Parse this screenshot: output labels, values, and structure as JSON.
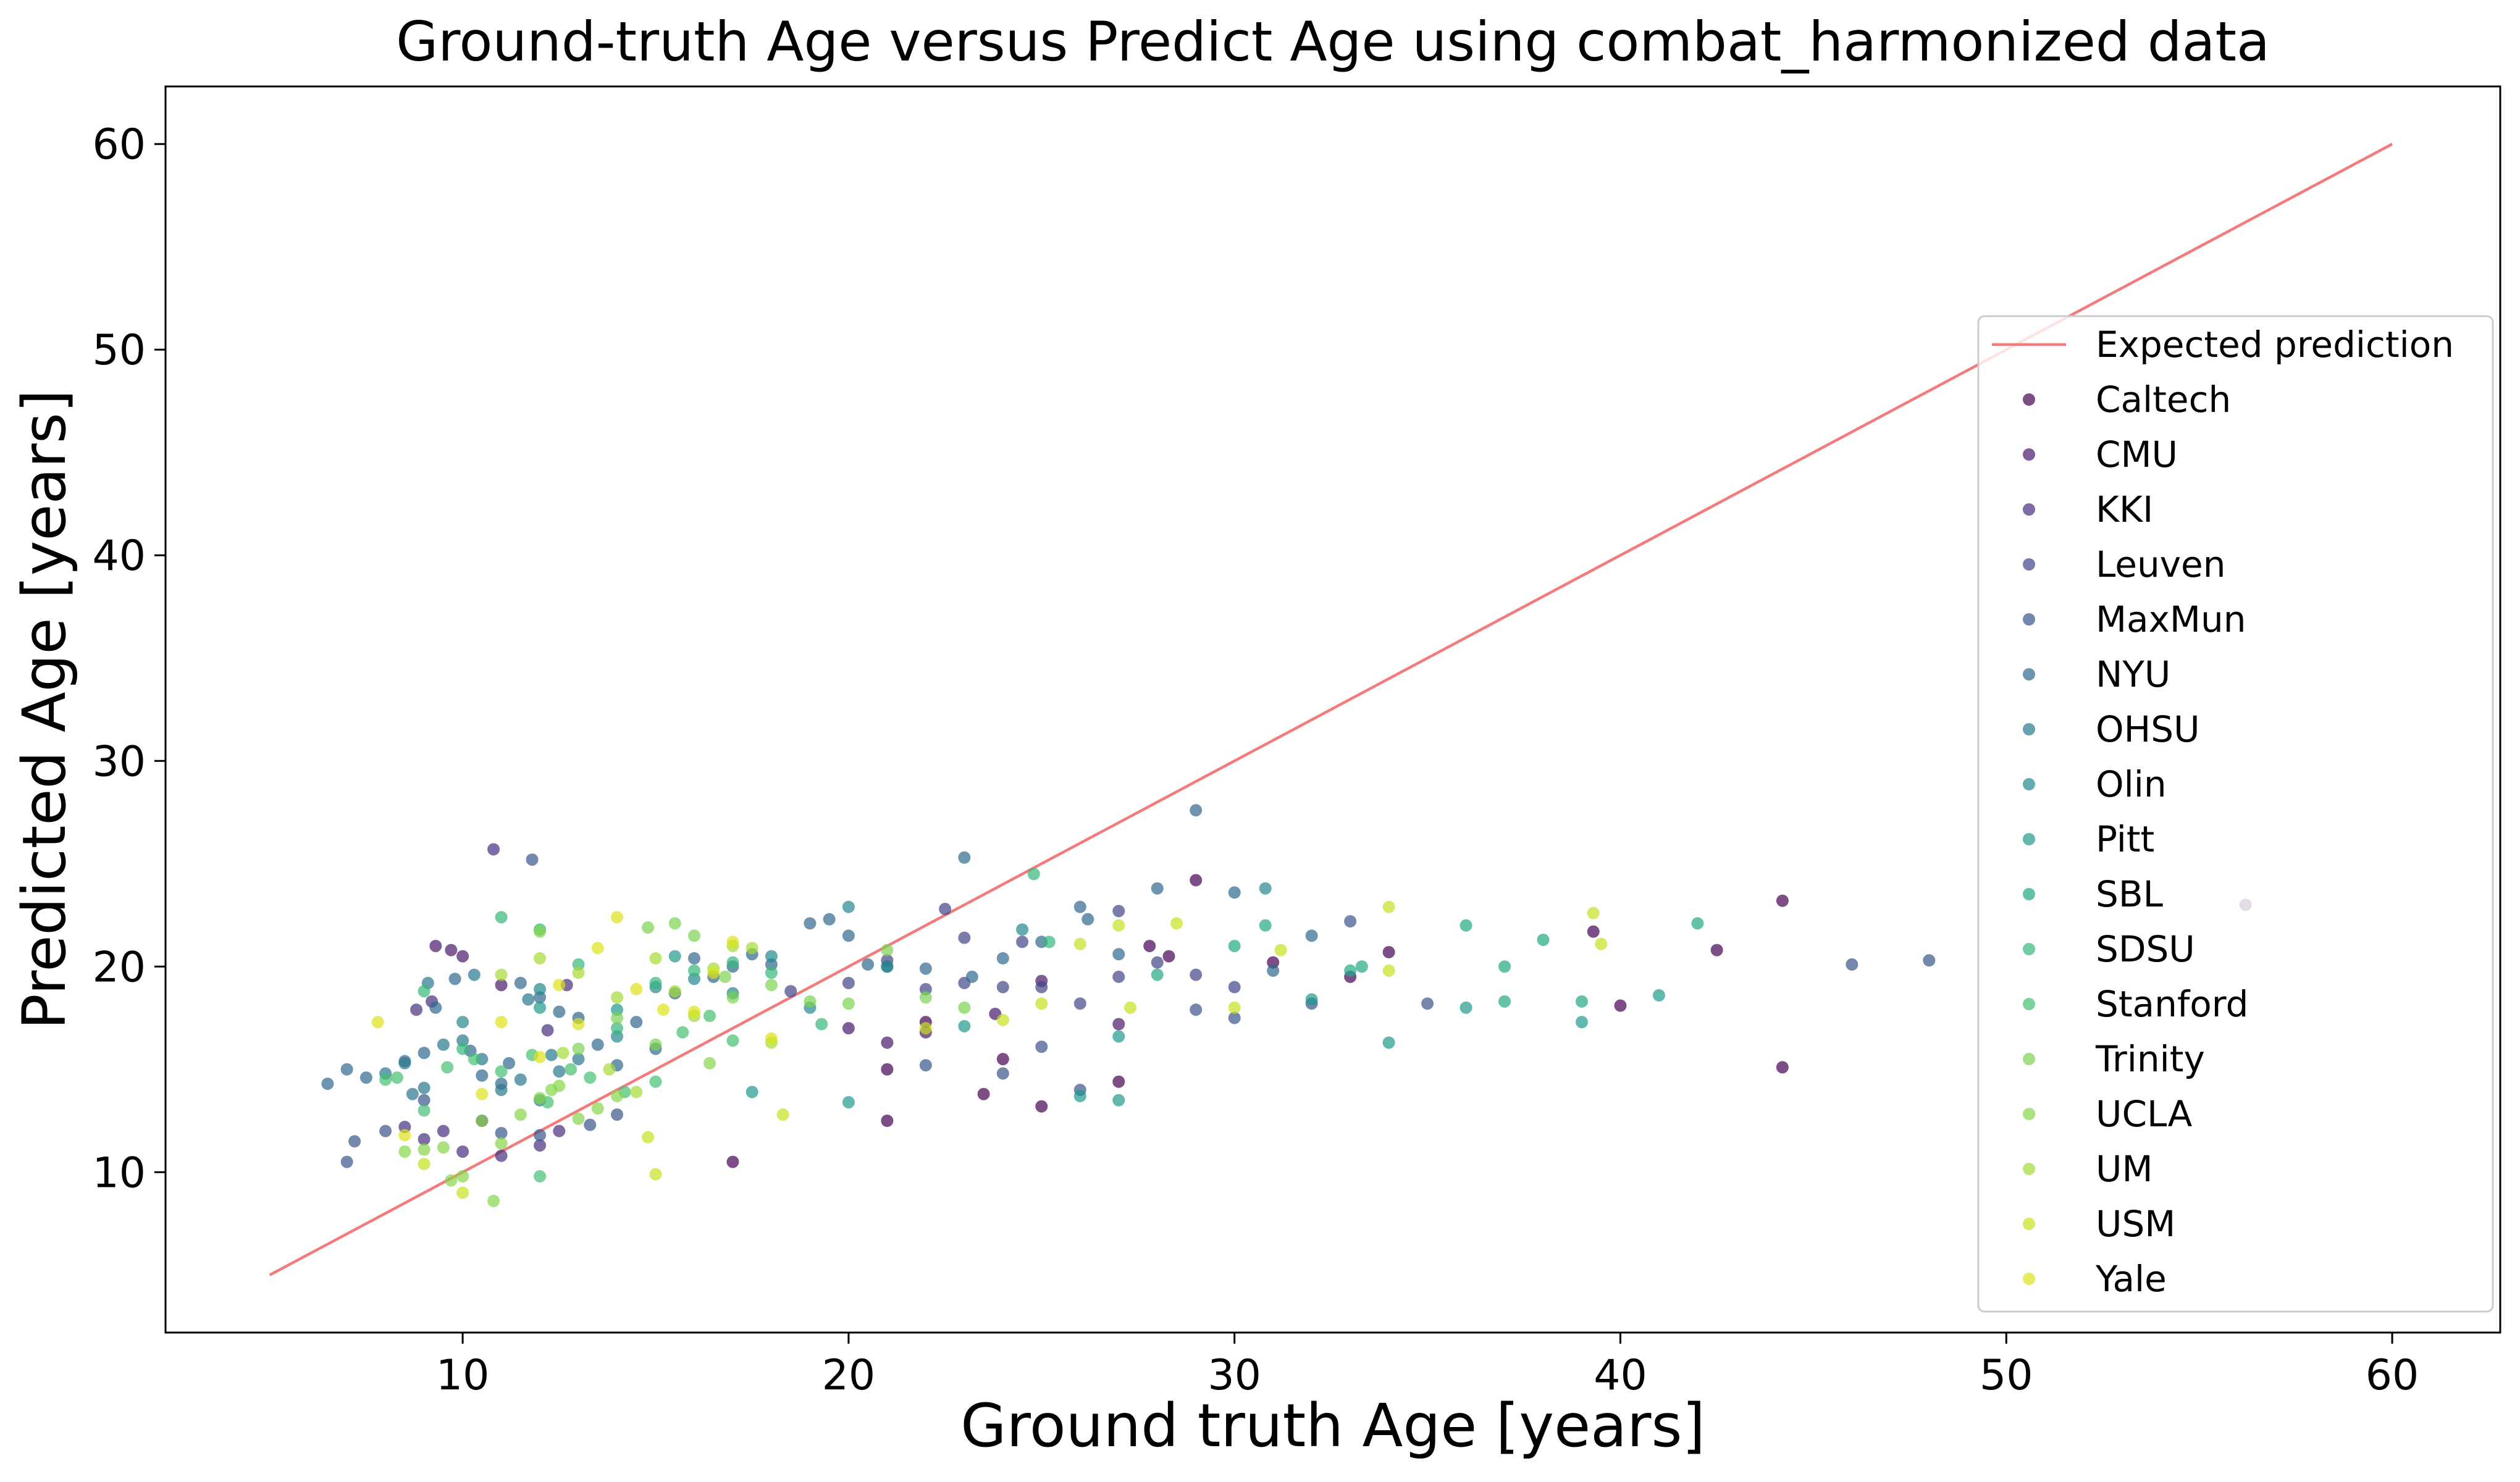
{
  "chart_data": {
    "type": "scatter",
    "title": "Ground-truth Age versus Predict Age using combat_harmonized data",
    "xlabel": "Ground truth Age [years]",
    "ylabel": "Predicted Age [years]",
    "xlim": [
      2.3,
      62.8
    ],
    "ylim": [
      2.2,
      62.8
    ],
    "xticks": [
      10,
      20,
      30,
      40,
      50,
      60
    ],
    "yticks": [
      10,
      20,
      30,
      40,
      50,
      60
    ],
    "xtick_labels": [
      "10",
      "20",
      "30",
      "40",
      "50",
      "60"
    ],
    "ytick_labels": [
      "10",
      "20",
      "30",
      "40",
      "50",
      "60"
    ],
    "grid": false,
    "legend_position": "center-right",
    "reference_line": {
      "name": "Expected prediction",
      "color": "#f47b7b",
      "points": [
        [
          5,
          5
        ],
        [
          60,
          60
        ]
      ]
    },
    "series": [
      {
        "name": "Caltech",
        "color": "#440154",
        "points": [
          [
            17.0,
            10.5
          ],
          [
            21.0,
            12.5
          ],
          [
            23.5,
            13.8
          ],
          [
            25.0,
            13.2
          ],
          [
            27.0,
            14.4
          ],
          [
            24.0,
            15.5
          ],
          [
            21.0,
            15.0
          ],
          [
            22.0,
            17.3
          ],
          [
            27.8,
            21.0
          ],
          [
            28.3,
            20.5
          ],
          [
            31.0,
            20.2
          ],
          [
            33.0,
            19.5
          ],
          [
            34.0,
            20.7
          ],
          [
            39.3,
            21.7
          ],
          [
            40.0,
            18.1
          ],
          [
            42.5,
            20.8
          ],
          [
            44.2,
            23.2
          ],
          [
            44.2,
            15.1
          ],
          [
            56.2,
            23.0
          ],
          [
            29.0,
            24.2
          ]
        ]
      },
      {
        "name": "CMU",
        "color": "#481a6c",
        "points": [
          [
            20.0,
            17.0
          ],
          [
            21.0,
            16.3
          ],
          [
            22.0,
            16.8
          ],
          [
            23.8,
            17.7
          ],
          [
            25.0,
            19.3
          ],
          [
            27.0,
            17.2
          ],
          [
            9.3,
            21.0
          ],
          [
            9.7,
            20.8
          ],
          [
            10.0,
            20.5
          ],
          [
            11.0,
            19.1
          ]
        ]
      },
      {
        "name": "KKI",
        "color": "#472f7d",
        "points": [
          [
            8.5,
            12.2
          ],
          [
            9.0,
            11.6
          ],
          [
            9.5,
            12.0
          ],
          [
            10.0,
            11.0
          ],
          [
            10.5,
            12.5
          ],
          [
            11.0,
            10.8
          ],
          [
            12.0,
            11.3
          ],
          [
            12.5,
            12.0
          ],
          [
            8.8,
            17.9
          ],
          [
            9.2,
            18.3
          ],
          [
            10.8,
            25.7
          ],
          [
            12.2,
            16.9
          ],
          [
            12.7,
            19.1
          ]
        ]
      },
      {
        "name": "Leuven",
        "color": "#414487",
        "points": [
          [
            18.5,
            18.8
          ],
          [
            20.0,
            19.2
          ],
          [
            21.0,
            20.3
          ],
          [
            22.0,
            18.9
          ],
          [
            23.0,
            19.2
          ],
          [
            24.0,
            19.0
          ],
          [
            25.0,
            19.0
          ],
          [
            26.0,
            18.2
          ],
          [
            27.0,
            19.5
          ],
          [
            28.0,
            20.2
          ],
          [
            29.0,
            19.6
          ],
          [
            30.0,
            19.0
          ],
          [
            22.5,
            22.8
          ],
          [
            23.0,
            21.4
          ],
          [
            24.5,
            21.2
          ],
          [
            27.0,
            22.7
          ]
        ]
      },
      {
        "name": "MaxMun",
        "color": "#39568c",
        "points": [
          [
            7.0,
            10.5
          ],
          [
            7.2,
            11.5
          ],
          [
            8.0,
            12.0
          ],
          [
            9.0,
            13.5
          ],
          [
            11.0,
            11.9
          ],
          [
            12.0,
            11.8
          ],
          [
            14.0,
            12.8
          ],
          [
            22.0,
            15.2
          ],
          [
            24.0,
            14.8
          ],
          [
            25.0,
            16.1
          ],
          [
            26.0,
            14.0
          ],
          [
            30.0,
            17.5
          ],
          [
            32.0,
            18.2
          ],
          [
            35.0,
            18.2
          ],
          [
            46.0,
            20.1
          ],
          [
            48.0,
            20.3
          ],
          [
            33.0,
            22.2
          ],
          [
            29.0,
            17.9
          ],
          [
            11.8,
            25.2
          ],
          [
            13.3,
            12.3
          ]
        ]
      },
      {
        "name": "NYU",
        "color": "#31688e",
        "points": [
          [
            6.5,
            14.3
          ],
          [
            7.0,
            15.0
          ],
          [
            7.5,
            14.6
          ],
          [
            8.5,
            15.4
          ],
          [
            9.0,
            15.8
          ],
          [
            9.3,
            18.0
          ],
          [
            9.8,
            19.4
          ],
          [
            10.2,
            15.9
          ],
          [
            10.5,
            14.7
          ],
          [
            11.0,
            14.3
          ],
          [
            11.2,
            15.3
          ],
          [
            11.5,
            19.2
          ],
          [
            12.0,
            18.5
          ],
          [
            12.5,
            17.8
          ],
          [
            13.0,
            17.5
          ],
          [
            13.5,
            16.2
          ],
          [
            14.0,
            15.2
          ],
          [
            14.5,
            17.3
          ],
          [
            15.0,
            16.0
          ],
          [
            15.5,
            18.7
          ],
          [
            16.0,
            20.4
          ],
          [
            16.5,
            19.5
          ],
          [
            17.0,
            20.0
          ],
          [
            17.5,
            20.6
          ],
          [
            18.0,
            20.1
          ],
          [
            19.0,
            22.1
          ],
          [
            19.5,
            22.3
          ],
          [
            20.0,
            21.5
          ],
          [
            20.5,
            20.1
          ],
          [
            21.0,
            20.0
          ],
          [
            22.0,
            19.9
          ],
          [
            23.0,
            25.3
          ],
          [
            24.0,
            20.4
          ],
          [
            25.0,
            21.2
          ],
          [
            26.0,
            22.9
          ],
          [
            27.0,
            20.6
          ],
          [
            28.0,
            23.8
          ],
          [
            29.0,
            27.6
          ],
          [
            30.0,
            23.6
          ],
          [
            31.0,
            19.8
          ],
          [
            32.0,
            21.5
          ],
          [
            26.2,
            22.3
          ],
          [
            23.2,
            19.5
          ]
        ]
      },
      {
        "name": "OHSU",
        "color": "#2a788e",
        "points": [
          [
            8.0,
            14.8
          ],
          [
            8.5,
            15.3
          ],
          [
            9.0,
            14.1
          ],
          [
            9.5,
            16.2
          ],
          [
            10.0,
            16.4
          ],
          [
            10.5,
            15.5
          ],
          [
            11.0,
            14.0
          ],
          [
            11.5,
            14.5
          ],
          [
            12.0,
            13.5
          ],
          [
            12.5,
            14.9
          ],
          [
            13.0,
            15.5
          ],
          [
            9.1,
            19.2
          ],
          [
            10.3,
            19.6
          ],
          [
            11.7,
            18.4
          ],
          [
            12.3,
            15.7
          ],
          [
            8.7,
            13.8
          ]
        ]
      },
      {
        "name": "Olin",
        "color": "#23888e",
        "points": [
          [
            10.0,
            17.3
          ],
          [
            12.0,
            18.9
          ],
          [
            14.0,
            16.6
          ],
          [
            15.0,
            19.0
          ],
          [
            16.0,
            19.4
          ],
          [
            17.0,
            18.7
          ],
          [
            18.0,
            20.5
          ],
          [
            19.0,
            18.0
          ],
          [
            20.0,
            22.9
          ],
          [
            21.0,
            20.0
          ],
          [
            30.8,
            23.8
          ],
          [
            24.5,
            21.8
          ]
        ]
      },
      {
        "name": "Pitt",
        "color": "#1f988b",
        "points": [
          [
            12.0,
            18.0
          ],
          [
            14.0,
            17.9
          ],
          [
            15.5,
            20.5
          ],
          [
            17.5,
            13.9
          ],
          [
            20.0,
            13.4
          ],
          [
            23.0,
            17.1
          ],
          [
            26.0,
            13.7
          ],
          [
            27.0,
            13.5
          ],
          [
            27.0,
            16.6
          ],
          [
            32.0,
            18.4
          ],
          [
            34.0,
            16.3
          ],
          [
            36.0,
            18.0
          ],
          [
            39.0,
            17.3
          ],
          [
            41.0,
            18.6
          ]
        ]
      },
      {
        "name": "SBL",
        "color": "#22a884",
        "points": [
          [
            28.0,
            19.6
          ],
          [
            30.0,
            21.0
          ],
          [
            33.0,
            19.8
          ],
          [
            36.0,
            22.0
          ],
          [
            37.0,
            20.0
          ],
          [
            38.0,
            21.3
          ],
          [
            39.0,
            18.3
          ],
          [
            42.0,
            22.1
          ],
          [
            37.0,
            18.3
          ],
          [
            33.3,
            20.0
          ],
          [
            30.8,
            22.0
          ]
        ]
      },
      {
        "name": "SDSU",
        "color": "#35b779",
        "points": [
          [
            9.0,
            18.8
          ],
          [
            10.0,
            16.0
          ],
          [
            11.0,
            22.4
          ],
          [
            12.0,
            21.8
          ],
          [
            13.0,
            20.1
          ],
          [
            14.0,
            17.0
          ],
          [
            15.0,
            19.2
          ],
          [
            16.0,
            19.8
          ],
          [
            17.0,
            20.2
          ],
          [
            18.0,
            19.7
          ],
          [
            24.8,
            24.5
          ],
          [
            25.2,
            21.2
          ],
          [
            19.3,
            17.2
          ]
        ]
      },
      {
        "name": "Stanford",
        "color": "#44bf70",
        "points": [
          [
            8.0,
            14.5
          ],
          [
            9.0,
            13.0
          ],
          [
            9.6,
            15.1
          ],
          [
            10.3,
            15.5
          ],
          [
            11.0,
            14.9
          ],
          [
            11.8,
            15.7
          ],
          [
            12.2,
            13.4
          ],
          [
            12.8,
            15.0
          ],
          [
            13.3,
            14.6
          ],
          [
            14.2,
            13.9
          ],
          [
            15.0,
            14.4
          ],
          [
            15.7,
            16.8
          ],
          [
            16.4,
            17.6
          ],
          [
            17.0,
            16.4
          ],
          [
            8.3,
            14.6
          ],
          [
            12.0,
            9.8
          ]
        ]
      },
      {
        "name": "Trinity",
        "color": "#7ad151",
        "points": [
          [
            13.0,
            16.0
          ],
          [
            14.0,
            17.5
          ],
          [
            15.0,
            16.2
          ],
          [
            15.5,
            22.1
          ],
          [
            16.0,
            21.5
          ],
          [
            17.0,
            18.5
          ],
          [
            18.0,
            19.1
          ],
          [
            19.0,
            18.3
          ],
          [
            20.0,
            18.2
          ],
          [
            21.0,
            20.8
          ],
          [
            22.0,
            18.5
          ],
          [
            23.0,
            18.0
          ],
          [
            16.8,
            19.5
          ],
          [
            14.8,
            21.9
          ]
        ]
      },
      {
        "name": "UCLA",
        "color": "#86d549",
        "points": [
          [
            8.5,
            11.0
          ],
          [
            9.0,
            11.1
          ],
          [
            9.5,
            11.2
          ],
          [
            10.0,
            9.8
          ],
          [
            10.5,
            12.5
          ],
          [
            11.0,
            11.4
          ],
          [
            11.5,
            12.8
          ],
          [
            12.0,
            13.6
          ],
          [
            12.5,
            14.2
          ],
          [
            13.0,
            12.6
          ],
          [
            13.5,
            13.1
          ],
          [
            14.0,
            13.7
          ],
          [
            9.7,
            9.6
          ],
          [
            10.8,
            8.6
          ],
          [
            12.3,
            14.0
          ],
          [
            12.0,
            21.7
          ],
          [
            16.4,
            15.3
          ]
        ]
      },
      {
        "name": "UM",
        "color": "#a5db36",
        "points": [
          [
            11.0,
            19.6
          ],
          [
            12.0,
            20.4
          ],
          [
            13.0,
            19.7
          ],
          [
            14.0,
            18.5
          ],
          [
            14.5,
            13.9
          ],
          [
            15.0,
            20.4
          ],
          [
            15.5,
            18.8
          ],
          [
            16.0,
            17.6
          ],
          [
            16.5,
            19.9
          ],
          [
            17.0,
            21.0
          ],
          [
            17.5,
            20.9
          ],
          [
            18.0,
            16.3
          ],
          [
            13.8,
            15.0
          ],
          [
            12.6,
            15.8
          ]
        ]
      },
      {
        "name": "USM",
        "color": "#c8e020",
        "points": [
          [
            18.3,
            12.8
          ],
          [
            15.0,
            9.9
          ],
          [
            22.0,
            17.0
          ],
          [
            24.0,
            17.4
          ],
          [
            25.0,
            18.2
          ],
          [
            26.0,
            21.1
          ],
          [
            27.0,
            22.0
          ],
          [
            27.3,
            18.0
          ],
          [
            28.5,
            22.1
          ],
          [
            30.0,
            18.0
          ],
          [
            31.2,
            20.8
          ],
          [
            34.0,
            22.9
          ],
          [
            39.3,
            22.6
          ],
          [
            39.5,
            21.1
          ],
          [
            34.0,
            19.8
          ],
          [
            14.8,
            11.7
          ],
          [
            9.0,
            10.4
          ],
          [
            10.0,
            9.0
          ]
        ]
      },
      {
        "name": "Yale",
        "color": "#dde318",
        "points": [
          [
            7.8,
            17.3
          ],
          [
            8.5,
            11.8
          ],
          [
            10.5,
            13.8
          ],
          [
            11.0,
            17.3
          ],
          [
            12.5,
            19.1
          ],
          [
            13.5,
            20.9
          ],
          [
            14.0,
            22.4
          ],
          [
            15.2,
            17.9
          ],
          [
            16.5,
            19.7
          ],
          [
            17.0,
            21.2
          ],
          [
            16.0,
            17.8
          ],
          [
            18.0,
            16.5
          ],
          [
            14.5,
            18.9
          ],
          [
            13.0,
            17.2
          ],
          [
            12.0,
            15.6
          ]
        ]
      }
    ]
  }
}
